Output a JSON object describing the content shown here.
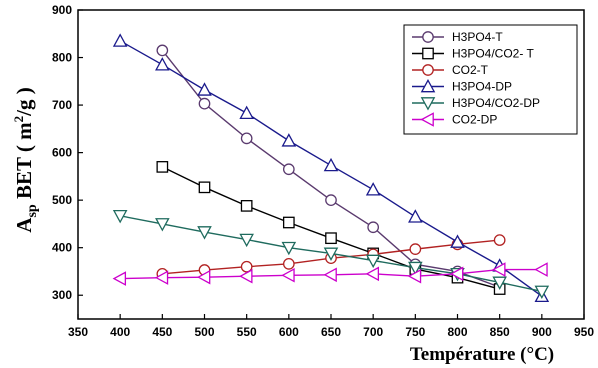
{
  "chart_data": {
    "type": "line",
    "title": "",
    "xlabel": "Température (°C)",
    "ylabel": {
      "main": "A",
      "sub": "sp",
      "rest": " BET ( m",
      "sup": "2",
      "tail": "/g )"
    },
    "xlim": [
      350,
      950
    ],
    "ylim": [
      250,
      900
    ],
    "xticks": [
      350,
      400,
      450,
      500,
      550,
      600,
      650,
      700,
      750,
      800,
      850,
      900,
      950
    ],
    "yticks": [
      300,
      400,
      500,
      600,
      700,
      800,
      900
    ],
    "grid": false,
    "legend_position": "top-right",
    "series": [
      {
        "name": "H3PO4-T",
        "marker": "circle",
        "color": "#5a3a6e",
        "x": [
          450,
          500,
          550,
          600,
          650,
          700,
          750,
          800,
          850
        ],
        "y": [
          815,
          703,
          630,
          565,
          500,
          443,
          365,
          350,
          317
        ]
      },
      {
        "name": "H3PO4/CO2- T",
        "marker": "square",
        "color": "#000000",
        "x": [
          450,
          500,
          550,
          600,
          650,
          700,
          750,
          800,
          850
        ],
        "y": [
          570,
          527,
          488,
          453,
          420,
          388,
          355,
          337,
          313
        ]
      },
      {
        "name": "CO2-T",
        "marker": "circle",
        "color": "#b22222",
        "x": [
          450,
          500,
          550,
          600,
          650,
          700,
          750,
          800,
          850
        ],
        "y": [
          345,
          353,
          360,
          366,
          378,
          386,
          397,
          407,
          416
        ]
      },
      {
        "name": "H3PO4-DP",
        "marker": "triangle-up",
        "color": "#1a1a8c",
        "x": [
          400,
          450,
          500,
          550,
          600,
          650,
          700,
          750,
          800,
          850,
          900
        ],
        "y": [
          835,
          785,
          732,
          683,
          625,
          573,
          522,
          465,
          412,
          362,
          298
        ]
      },
      {
        "name": "H3PO4/CO2-DP",
        "marker": "triangle-down",
        "color": "#1f6b5e",
        "x": [
          400,
          450,
          500,
          550,
          600,
          650,
          700,
          750,
          800,
          850,
          900
        ],
        "y": [
          467,
          450,
          433,
          417,
          400,
          388,
          373,
          358,
          345,
          327,
          308
        ]
      },
      {
        "name": "CO2-DP",
        "marker": "triangle-left",
        "color": "#cc00cc",
        "x": [
          400,
          450,
          500,
          550,
          600,
          650,
          700,
          750,
          800,
          850,
          900
        ],
        "y": [
          335,
          337,
          338,
          340,
          342,
          343,
          345,
          340,
          345,
          354,
          354
        ]
      }
    ]
  }
}
